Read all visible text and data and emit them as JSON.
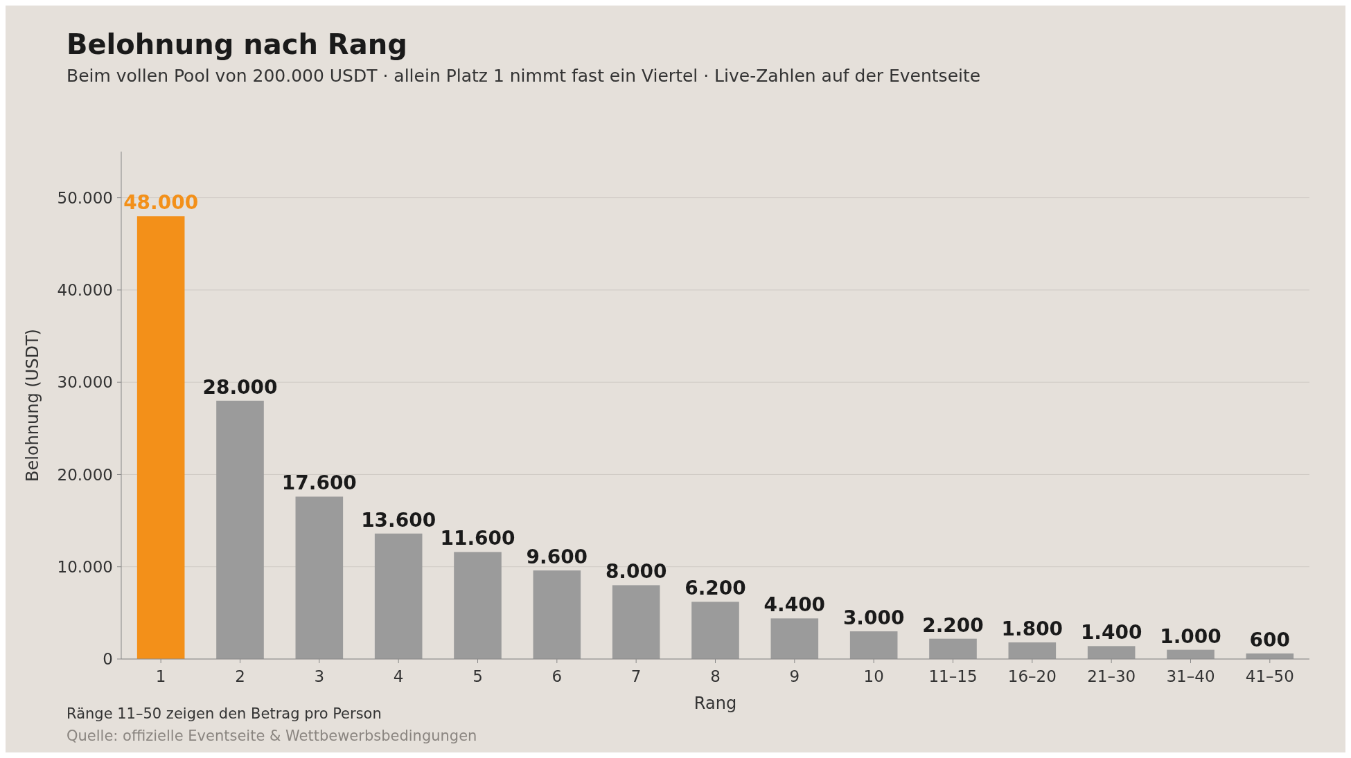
{
  "chart_data": {
    "type": "bar",
    "title": "Belohnung nach Rang",
    "subtitle": "Beim vollen Pool von 200.000 USDT · allein Platz 1 nimmt fast ein Viertel · Live-Zahlen auf der Eventseite",
    "xlabel": "Rang",
    "ylabel": "Belohnung (USDT)",
    "categories": [
      "1",
      "2",
      "3",
      "4",
      "5",
      "6",
      "7",
      "8",
      "9",
      "10",
      "11–15",
      "16–20",
      "21–30",
      "31–40",
      "41–50"
    ],
    "values": [
      48000,
      28000,
      17600,
      13600,
      11600,
      9600,
      8000,
      6200,
      4400,
      3000,
      2200,
      1800,
      1400,
      1000,
      600
    ],
    "colors": [
      "#f39019",
      "#9b9b9b",
      "#9b9b9b",
      "#9b9b9b",
      "#9b9b9b",
      "#9b9b9b",
      "#9b9b9b",
      "#9b9b9b",
      "#9b9b9b",
      "#9b9b9b",
      "#9b9b9b",
      "#9b9b9b",
      "#9b9b9b",
      "#9b9b9b",
      "#9b9b9b"
    ],
    "value_labels": [
      "48.000",
      "28.000",
      "17.600",
      "13.600",
      "11.600",
      "9.600",
      "8.000",
      "6.200",
      "4.400",
      "3.000",
      "2.200",
      "1.800",
      "1.400",
      "1.000",
      "600"
    ],
    "ylim": [
      0,
      55000
    ],
    "yticks": [
      {
        "value": 0,
        "label": "0"
      },
      {
        "value": 10000,
        "label": "10.000"
      },
      {
        "value": 20000,
        "label": "20.000"
      },
      {
        "value": 30000,
        "label": "30.000"
      },
      {
        "value": 40000,
        "label": "40.000"
      },
      {
        "value": 50000,
        "label": "50.000"
      }
    ],
    "grid": "y",
    "annotations": [
      "Ränge 11–50 zeigen den Betrag pro Person",
      "Quelle: offizielle Eventseite & Wettbewerbsbedingungen"
    ]
  }
}
